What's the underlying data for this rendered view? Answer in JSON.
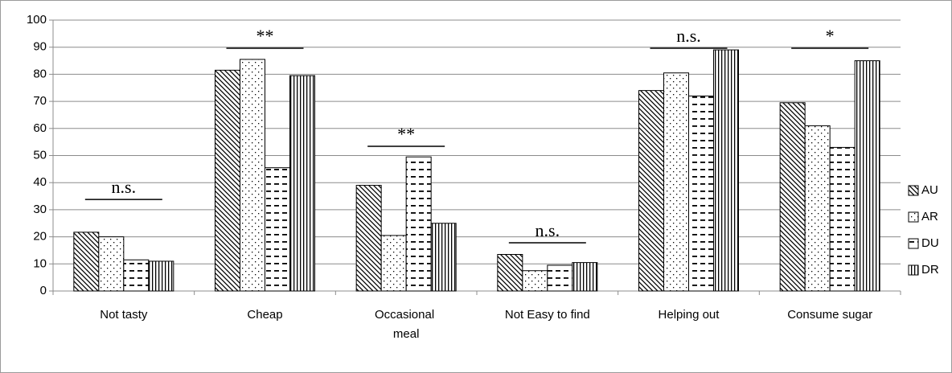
{
  "chart_data": {
    "type": "bar",
    "categories": [
      "Not tasty",
      "Cheap",
      "Occasional meal",
      "Not Easy to find",
      "Helping out",
      "Consume sugar"
    ],
    "series": [
      {
        "name": "AU",
        "color": "#000000",
        "pattern": "diagonal",
        "values": [
          21.7,
          81.5,
          39,
          13.5,
          74,
          69.5
        ]
      },
      {
        "name": "AR",
        "color": "#000000",
        "pattern": "dots",
        "values": [
          20,
          85.5,
          20.5,
          7.5,
          80.5,
          61
        ]
      },
      {
        "name": "DU",
        "color": "#000000",
        "pattern": "dashes",
        "values": [
          11.5,
          45.5,
          49.5,
          9.5,
          72,
          53
        ]
      },
      {
        "name": "DR",
        "color": "#000000",
        "pattern": "vertical",
        "values": [
          11,
          79.5,
          25,
          10.5,
          89,
          85
        ]
      }
    ],
    "annotations": [
      {
        "text": "n.s.",
        "y": 33.8
      },
      {
        "text": "**",
        "y": 89.6
      },
      {
        "text": "**",
        "y": 53.4
      },
      {
        "text": "n.s.",
        "y": 17.8
      },
      {
        "text": "n.s.",
        "y": 89.6
      },
      {
        "text": "*",
        "y": 89.6
      }
    ],
    "ylim": [
      0,
      100
    ],
    "yticks": [
      0,
      10,
      20,
      30,
      40,
      50,
      60,
      70,
      80,
      90,
      100
    ],
    "grid": true,
    "legend": "right"
  }
}
